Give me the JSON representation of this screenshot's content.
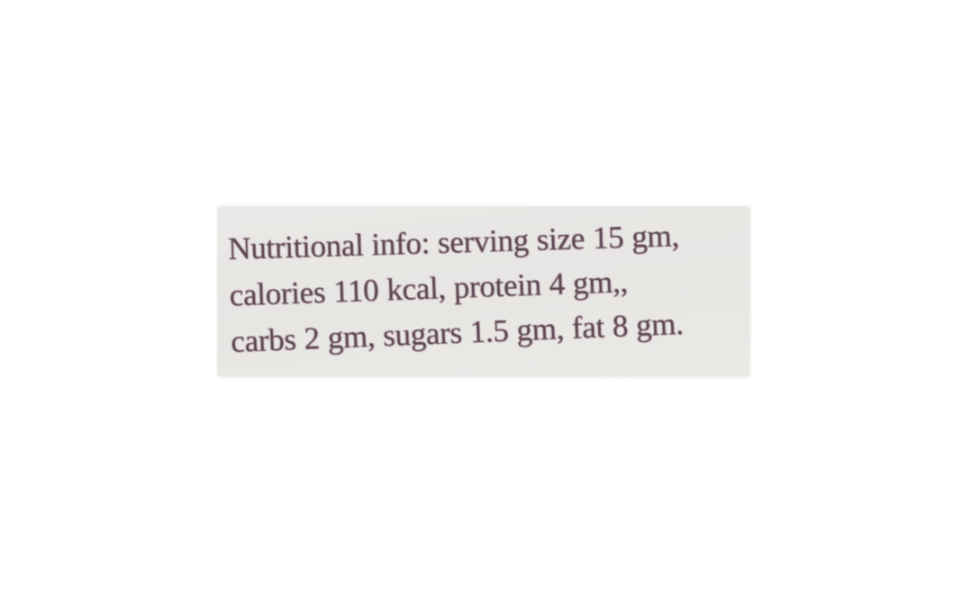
{
  "label": {
    "lines": [
      "Nutritional info: serving size 15 gm,",
      "calories 110 kcal, protein 4 gm,,",
      "carbs 2 gm, sugars 1.5 gm, fat 8 gm."
    ],
    "nutrition_facts": {
      "serving_size": "15 gm",
      "calories": "110 kcal",
      "protein": "4 gm",
      "carbs": "2 gm",
      "sugars": "1.5 gm",
      "fat": "8 gm"
    },
    "colors": {
      "page_background": "#ffffff",
      "label_background": "#e9e7e4",
      "text_color": "#5a4451"
    }
  }
}
